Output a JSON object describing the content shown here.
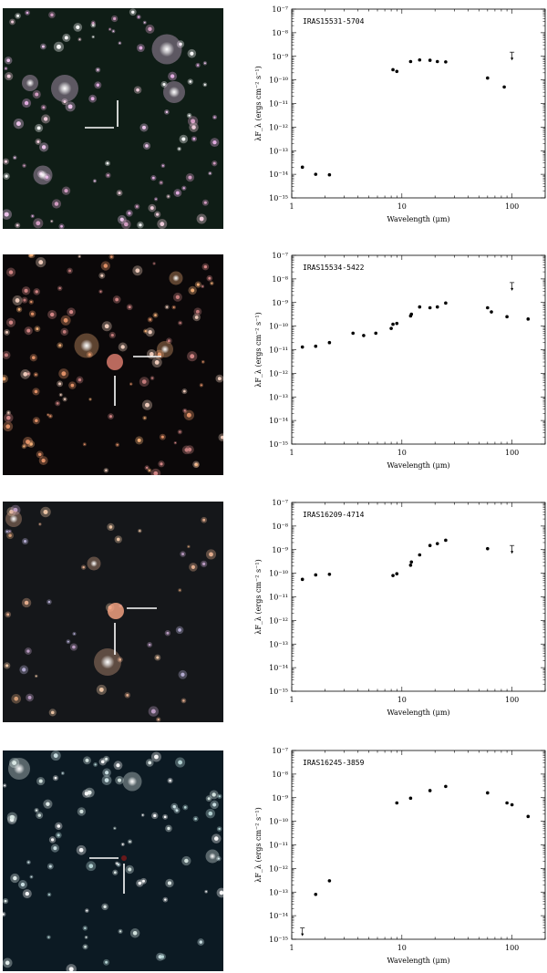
{
  "chart_data": [
    {
      "type": "scatter",
      "title": "IRAS15531-5704",
      "xlabel": "Wavelength (μm)",
      "ylabel": "λF_λ (ergs cm⁻² s⁻¹)",
      "xscale": "log",
      "yscale": "log",
      "xlim": [
        1,
        200
      ],
      "ylim": [
        1e-15,
        1e-07
      ],
      "x_ticks": [
        "1",
        "10",
        "100"
      ],
      "y_ticks": [
        "10⁻¹⁵",
        "10⁻¹⁴",
        "10⁻¹³",
        "10⁻¹²",
        "10⁻¹¹",
        "10⁻¹⁰",
        "10⁻⁹",
        "10⁻⁸",
        "10⁻⁷"
      ],
      "points": [
        {
          "x": 1.25,
          "y": 2e-14
        },
        {
          "x": 1.65,
          "y": 1e-14
        },
        {
          "x": 2.2,
          "y": 9.5e-15
        },
        {
          "x": 8.3,
          "y": 2.7e-10
        },
        {
          "x": 9.0,
          "y": 2.3e-10
        },
        {
          "x": 12,
          "y": 6e-10
        },
        {
          "x": 14.5,
          "y": 7e-10
        },
        {
          "x": 18,
          "y": 6.8e-10
        },
        {
          "x": 21,
          "y": 6e-10
        },
        {
          "x": 25,
          "y": 5.8e-10
        },
        {
          "x": 60,
          "y": 1.2e-10
        },
        {
          "x": 85,
          "y": 5e-11
        }
      ],
      "upper_limits": [
        {
          "x": 100,
          "y": 1.5e-09
        }
      ]
    },
    {
      "type": "scatter",
      "title": "IRAS15534-5422",
      "xlabel": "Wavelength (μm)",
      "ylabel": "λF_λ (ergs cm⁻² s⁻¹)",
      "xscale": "log",
      "yscale": "log",
      "xlim": [
        1,
        200
      ],
      "ylim": [
        1e-15,
        1e-07
      ],
      "x_ticks": [
        "1",
        "10",
        "100"
      ],
      "y_ticks": [
        "10⁻¹⁵",
        "10⁻¹⁴",
        "10⁻¹³",
        "10⁻¹²",
        "10⁻¹¹",
        "10⁻¹⁰",
        "10⁻⁹",
        "10⁻⁸",
        "10⁻⁷"
      ],
      "points": [
        {
          "x": 1.25,
          "y": 1.3e-11
        },
        {
          "x": 1.65,
          "y": 1.4e-11
        },
        {
          "x": 2.2,
          "y": 2e-11
        },
        {
          "x": 3.6,
          "y": 5e-11
        },
        {
          "x": 4.5,
          "y": 4e-11
        },
        {
          "x": 5.8,
          "y": 5e-11
        },
        {
          "x": 8.0,
          "y": 8e-11
        },
        {
          "x": 8.3,
          "y": 1.2e-10
        },
        {
          "x": 9.0,
          "y": 1.3e-10
        },
        {
          "x": 12,
          "y": 2.7e-10
        },
        {
          "x": 12.2,
          "y": 3.2e-10
        },
        {
          "x": 14.5,
          "y": 6.5e-10
        },
        {
          "x": 18,
          "y": 6e-10
        },
        {
          "x": 21,
          "y": 6.5e-10
        },
        {
          "x": 25,
          "y": 9.5e-10
        },
        {
          "x": 60,
          "y": 6e-10
        },
        {
          "x": 65,
          "y": 4e-10
        },
        {
          "x": 90,
          "y": 2.5e-10
        },
        {
          "x": 140,
          "y": 2e-10
        }
      ],
      "upper_limits": [
        {
          "x": 100,
          "y": 7e-09
        }
      ]
    },
    {
      "type": "scatter",
      "title": "IRAS16209-4714",
      "xlabel": "Wavelength (μm)",
      "ylabel": "λF_λ (ergs cm⁻² s⁻¹)",
      "xscale": "log",
      "yscale": "log",
      "xlim": [
        1,
        200
      ],
      "ylim": [
        1e-15,
        1e-07
      ],
      "x_ticks": [
        "1",
        "10",
        "100"
      ],
      "y_ticks": [
        "10⁻¹⁵",
        "10⁻¹⁴",
        "10⁻¹³",
        "10⁻¹²",
        "10⁻¹¹",
        "10⁻¹⁰",
        "10⁻⁹",
        "10⁻⁸",
        "10⁻⁷"
      ],
      "points": [
        {
          "x": 1.25,
          "y": 5.5e-11
        },
        {
          "x": 1.65,
          "y": 8.5e-11
        },
        {
          "x": 2.2,
          "y": 9e-11
        },
        {
          "x": 8.3,
          "y": 8e-11
        },
        {
          "x": 9.0,
          "y": 9.5e-11
        },
        {
          "x": 12,
          "y": 2.2e-10
        },
        {
          "x": 12.2,
          "y": 3e-10
        },
        {
          "x": 14.5,
          "y": 6e-10
        },
        {
          "x": 18,
          "y": 1.5e-09
        },
        {
          "x": 21,
          "y": 1.8e-09
        },
        {
          "x": 25,
          "y": 2.5e-09
        },
        {
          "x": 60,
          "y": 1.1e-09
        }
      ],
      "upper_limits": [
        {
          "x": 100,
          "y": 1.5e-09
        }
      ]
    },
    {
      "type": "scatter",
      "title": "IRAS16245-3859",
      "xlabel": "Wavelength (μm)",
      "ylabel": "λF_λ (ergs cm⁻² s⁻¹)",
      "xscale": "log",
      "yscale": "log",
      "xlim": [
        1,
        200
      ],
      "ylim": [
        1e-15,
        1e-07
      ],
      "x_ticks": [
        "1",
        "10",
        "100"
      ],
      "y_ticks": [
        "10⁻¹⁵",
        "10⁻¹⁴",
        "10⁻¹³",
        "10⁻¹²",
        "10⁻¹¹",
        "10⁻¹⁰",
        "10⁻⁹",
        "10⁻⁸",
        "10⁻⁷"
      ],
      "points": [
        {
          "x": 1.65,
          "y": 8e-14
        },
        {
          "x": 2.2,
          "y": 3e-13
        },
        {
          "x": 9.0,
          "y": 6e-10
        },
        {
          "x": 12,
          "y": 9.5e-10
        },
        {
          "x": 18,
          "y": 2e-09
        },
        {
          "x": 25,
          "y": 3e-09
        },
        {
          "x": 60,
          "y": 1.6e-09
        },
        {
          "x": 90,
          "y": 6e-10
        },
        {
          "x": 100,
          "y": 5e-10
        },
        {
          "x": 140,
          "y": 1.6e-10
        }
      ],
      "upper_limits": [
        {
          "x": 1.25,
          "y": 3e-15
        }
      ]
    }
  ],
  "images": [
    {
      "name": "field-15531",
      "background": "#0f1d16"
    },
    {
      "name": "field-15534",
      "background": "#0b0809"
    },
    {
      "name": "field-16209",
      "background": "#15171a"
    },
    {
      "name": "field-16245",
      "background": "#0c1a23"
    }
  ]
}
